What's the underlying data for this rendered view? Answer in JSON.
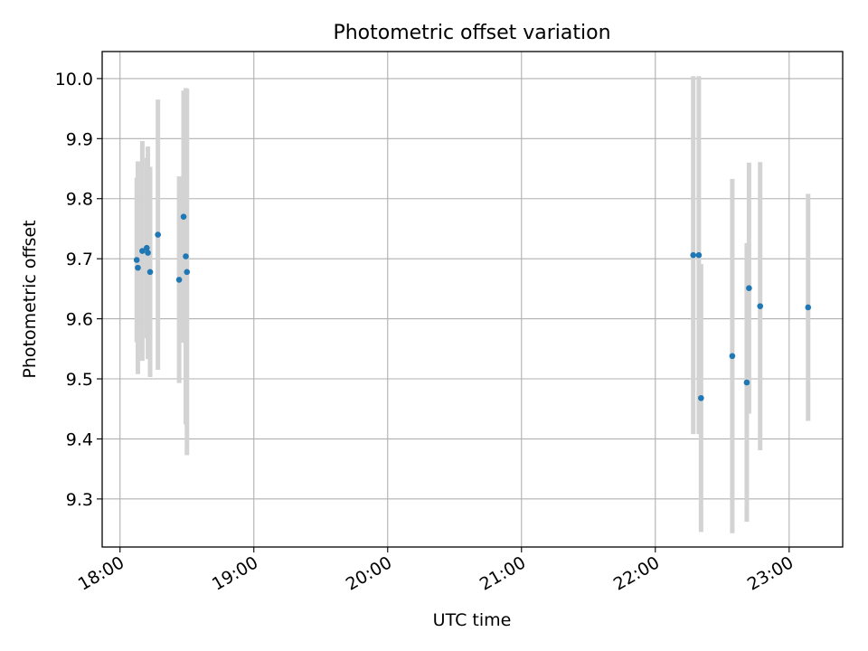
{
  "chart_data": {
    "type": "scatter",
    "title": "Photometric offset variation",
    "xlabel": "UTC time",
    "ylabel": "Photometric offset",
    "xlim": [
      "17:52",
      "23:24"
    ],
    "ylim": [
      9.22,
      10.045
    ],
    "x_ticks": [
      "18:00",
      "19:00",
      "20:00",
      "21:00",
      "22:00",
      "23:00"
    ],
    "y_ticks": [
      9.3,
      9.4,
      9.5,
      9.6,
      9.7,
      9.8,
      9.9,
      10.0
    ],
    "y_tick_labels": [
      "9.3",
      "9.4",
      "9.5",
      "9.6",
      "9.7",
      "9.8",
      "9.9",
      "10.0"
    ],
    "grid": true,
    "colors": {
      "point": "#1f77b4",
      "errorbar": "#d3d3d3",
      "grid": "#b0b0b0"
    },
    "points": [
      {
        "x": "18:07.5",
        "y": 9.698,
        "err": 0.137
      },
      {
        "x": "18:08.0",
        "y": 9.685,
        "err": 0.177
      },
      {
        "x": "18:10.0",
        "y": 9.713,
        "err": 0.183
      },
      {
        "x": "18:12.0",
        "y": 9.718,
        "err": 0.15
      },
      {
        "x": "18:12.5",
        "y": 9.71,
        "err": 0.177
      },
      {
        "x": "18:13.5",
        "y": 9.678,
        "err": 0.175
      },
      {
        "x": "18:17.0",
        "y": 9.74,
        "err": 0.225
      },
      {
        "x": "18:26.5",
        "y": 9.665,
        "err": 0.172
      },
      {
        "x": "18:28.5",
        "y": 9.77,
        "err": 0.21
      },
      {
        "x": "18:29.5",
        "y": 9.704,
        "err": 0.28
      },
      {
        "x": "18:30.0",
        "y": 9.678,
        "err": 0.305
      },
      {
        "x": "22:17.0",
        "y": 9.706,
        "err": 0.298
      },
      {
        "x": "22:19.5",
        "y": 9.706,
        "err": 0.298
      },
      {
        "x": "22:20.5",
        "y": 9.468,
        "err": 0.223
      },
      {
        "x": "22:34.5",
        "y": 9.538,
        "err": 0.295
      },
      {
        "x": "22:41.0",
        "y": 9.494,
        "err": 0.232
      },
      {
        "x": "22:42.0",
        "y": 9.651,
        "err": 0.209
      },
      {
        "x": "22:47.0",
        "y": 9.621,
        "err": 0.24
      },
      {
        "x": "23:08.5",
        "y": 9.619,
        "err": 0.189
      }
    ]
  }
}
